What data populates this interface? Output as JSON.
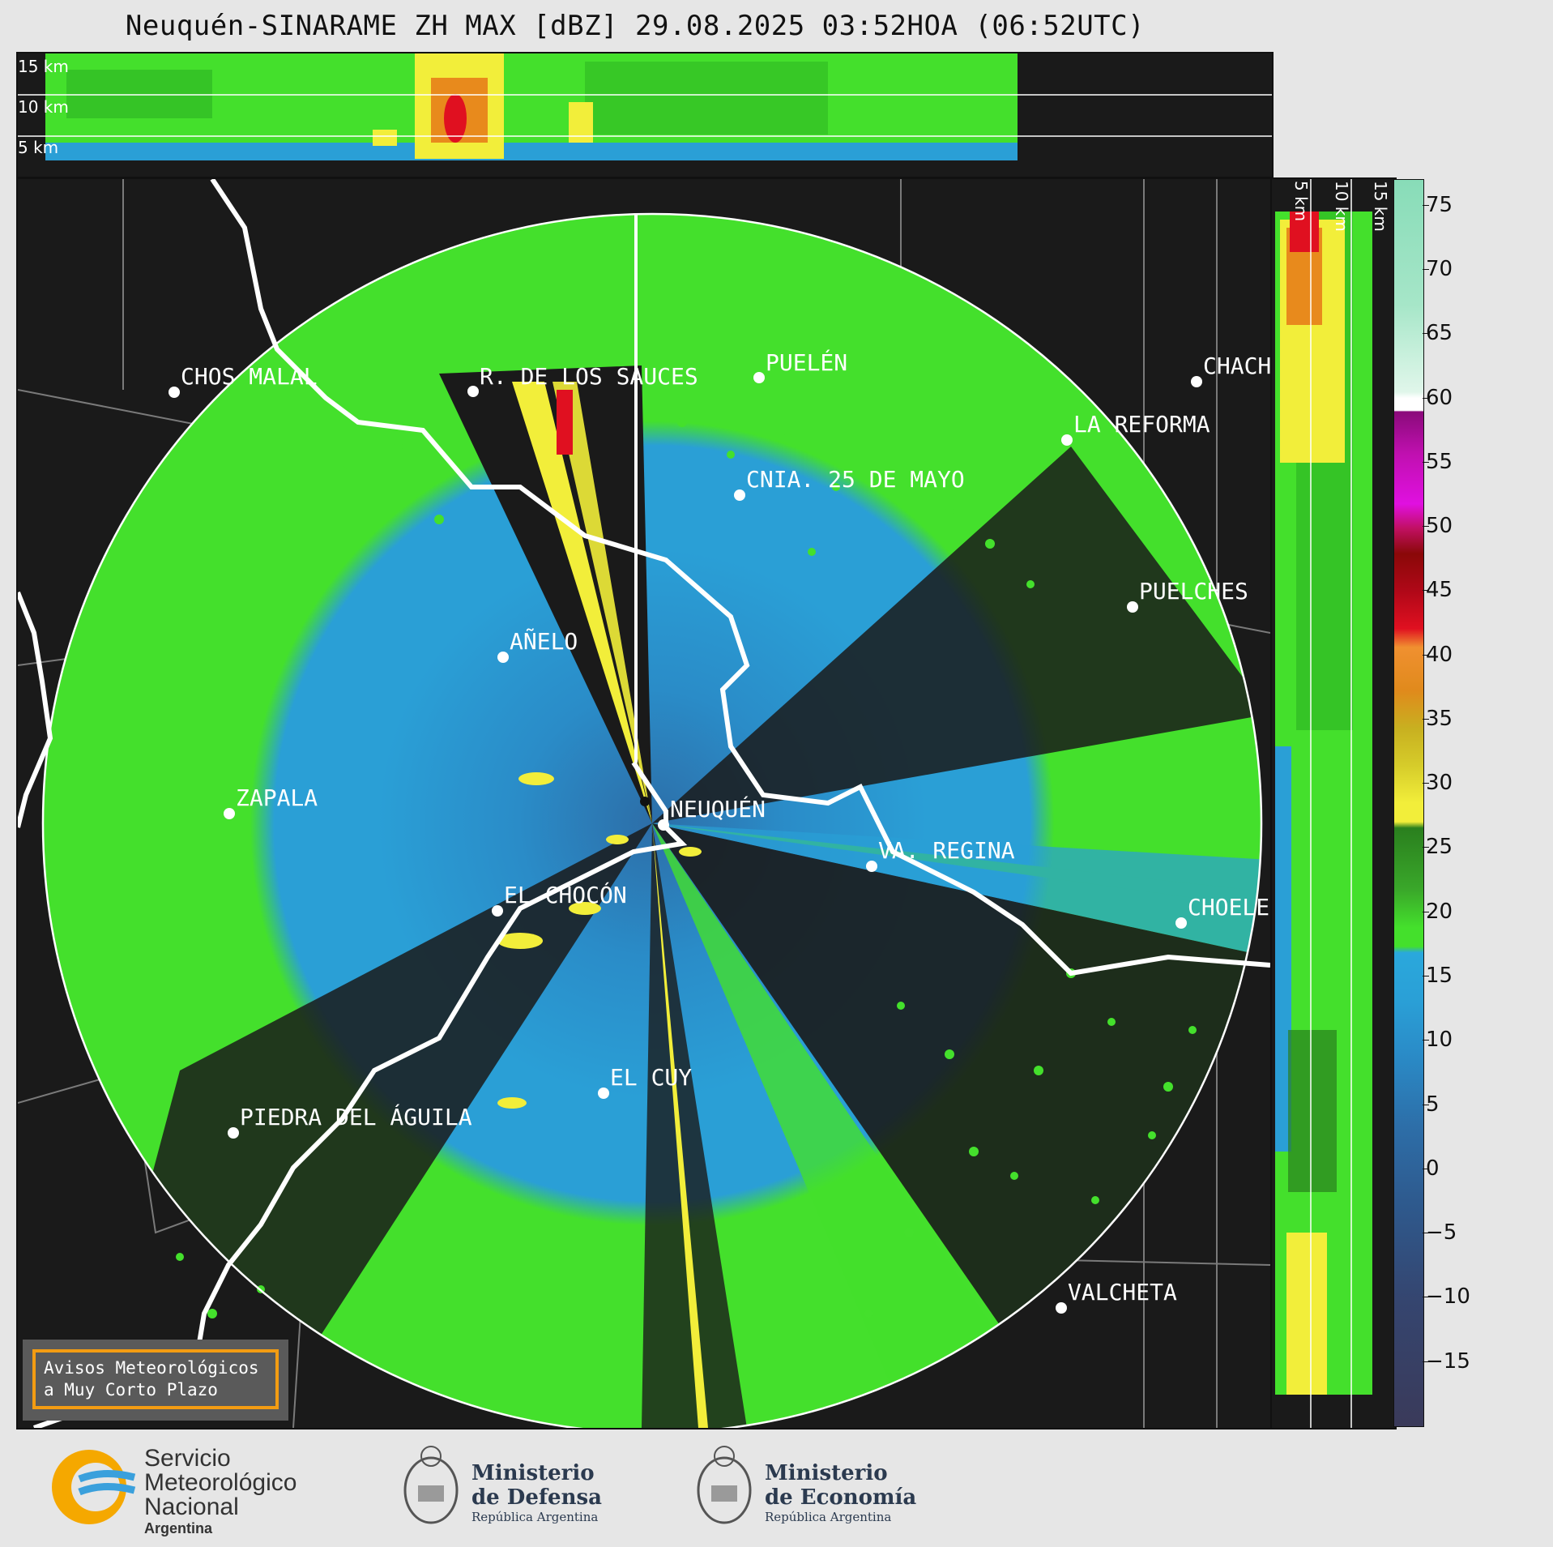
{
  "title": "Neuquén-SINARAME ZH MAX [dBZ] 29.08.2025 03:52HOA (06:52UTC)",
  "top_panel": {
    "height_labels": [
      "15 km",
      "10 km",
      "5 km"
    ]
  },
  "side_panel": {
    "height_labels": [
      "5 km",
      "10 km",
      "15 km"
    ]
  },
  "colorbar": {
    "unit": "dBZ",
    "tick_labels": [
      "75",
      "70",
      "65",
      "60",
      "55",
      "50",
      "45",
      "40",
      "35",
      "30",
      "25",
      "20",
      "15",
      "10",
      "5",
      "0",
      "−5",
      "−10",
      "−15"
    ],
    "range": [
      -20,
      77
    ]
  },
  "cities": [
    {
      "name": "CHOS MALAL"
    },
    {
      "name": "R. DE LOS SAUCES"
    },
    {
      "name": "PUELÉN"
    },
    {
      "name": "CHACH"
    },
    {
      "name": "LA REFORMA"
    },
    {
      "name": "CNIA. 25 DE MAYO"
    },
    {
      "name": "PUELCHES"
    },
    {
      "name": "AÑELO"
    },
    {
      "name": "ZAPALA"
    },
    {
      "name": "NEUQUÉN"
    },
    {
      "name": "VA. REGINA"
    },
    {
      "name": "EL CHOCÓN"
    },
    {
      "name": "CHOELE"
    },
    {
      "name": "EL CUY"
    },
    {
      "name": "PIEDRA DEL ÁGUILA"
    },
    {
      "name": "VALCHETA"
    }
  ],
  "warning": {
    "line1": "Avisos Meteorológicos",
    "line2": "a Muy Corto Plazo"
  },
  "logos": {
    "smn": {
      "line1": "Servicio",
      "line2": "Meteorológico",
      "line3": "Nacional",
      "line4": "Argentina"
    },
    "defensa": {
      "line1": "Ministerio",
      "line2": "de Defensa",
      "line3": "República Argentina"
    },
    "economia": {
      "line1": "Ministerio",
      "line2": "de Economía",
      "line3": "República Argentina"
    }
  },
  "colors": {
    "background": "#1a1a1a",
    "weak_echo_blue": "#2a9fd6",
    "green_echo": "#44e02c",
    "yellow_echo": "#f2ee3a",
    "red_echo": "#e01020",
    "range_ring": "#ffffff",
    "accent_orange": "#f39c12"
  }
}
